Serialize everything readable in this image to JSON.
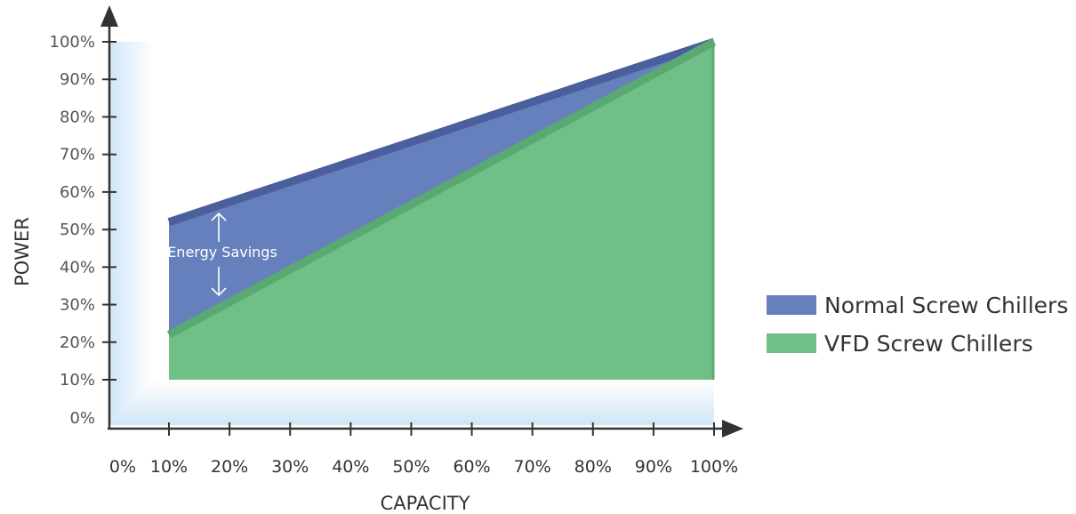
{
  "chart_data": {
    "type": "area",
    "xlabel": "CAPACITY",
    "ylabel": "POWER",
    "x_tick_labels": [
      "0%",
      "10%",
      "20%",
      "30%",
      "40%",
      "50%",
      "60%",
      "70%",
      "80%",
      "90%",
      "100%"
    ],
    "y_tick_labels": [
      "0%",
      "10%",
      "20%",
      "30%",
      "40%",
      "50%",
      "60%",
      "70%",
      "80%",
      "90%",
      "100%"
    ],
    "xlim": [
      0,
      100
    ],
    "ylim": [
      0,
      100
    ],
    "x": [
      10,
      100
    ],
    "series": [
      {
        "name": "Normal Screw Chillers",
        "color": "#6580bd",
        "values": [
          52,
          100
        ]
      },
      {
        "name": "VFD Screw Chillers",
        "color": "#6fbf86",
        "values": [
          22,
          100
        ]
      }
    ],
    "baseline": 10,
    "legend_position": "right",
    "annotation": "Energy Savings"
  }
}
